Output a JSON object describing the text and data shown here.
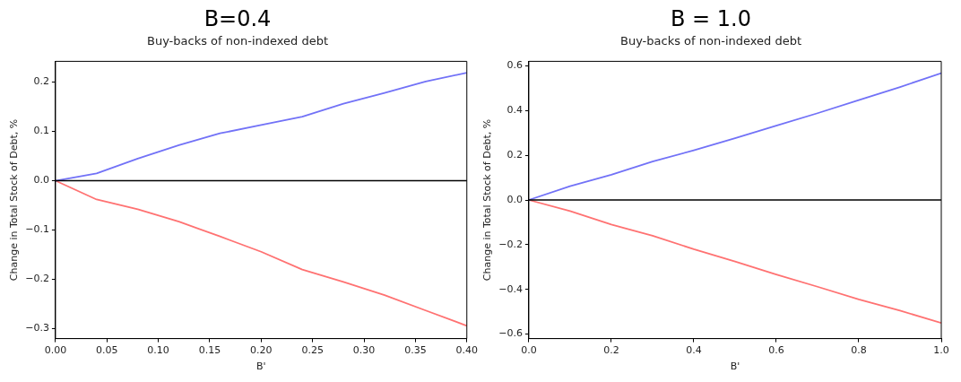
{
  "chart_data": [
    {
      "type": "line",
      "title": "B̄=0.4",
      "subtitle": "Buy-backs of non-indexed debt",
      "xlabel": "B'",
      "ylabel": "Change in Total Stock of Debt, %",
      "x": [
        0,
        0.04,
        0.08,
        0.12,
        0.16,
        0.2,
        0.24,
        0.28,
        0.32,
        0.36,
        0.4
      ],
      "series": [
        {
          "color": "#7272f7",
          "values": [
            0,
            0.015,
            0.045,
            0.072,
            0.096,
            0.113,
            0.13,
            0.156,
            0.178,
            0.201,
            0.219
          ]
        },
        {
          "color": "#ff7272",
          "values": [
            0,
            -0.038,
            -0.058,
            -0.083,
            -0.113,
            -0.144,
            -0.18,
            -0.205,
            -0.232,
            -0.263,
            -0.294
          ]
        }
      ],
      "xlim": [
        0,
        0.4
      ],
      "xticks": [
        {
          "value": 0,
          "label": "0.00"
        },
        {
          "value": 0.05,
          "label": "0.05"
        },
        {
          "value": 0.1,
          "label": "0.10"
        },
        {
          "value": 0.15,
          "label": "0.15"
        },
        {
          "value": 0.2,
          "label": "0.20"
        },
        {
          "value": 0.25,
          "label": "0.25"
        },
        {
          "value": 0.3,
          "label": "0.30"
        },
        {
          "value": 0.35,
          "label": "0.35"
        },
        {
          "value": 0.4,
          "label": "0.40"
        }
      ],
      "ylim": [
        -0.32,
        0.242
      ],
      "yticks": [
        {
          "value": -0.3,
          "label": "−0.3"
        },
        {
          "value": -0.2,
          "label": "−0.2"
        },
        {
          "value": -0.1,
          "label": "−0.1"
        },
        {
          "value": 0,
          "label": "0.0"
        },
        0.1,
        0.2
      ],
      "ref_lines": [
        {
          "axis": "y",
          "value": 0,
          "color": "#000000"
        }
      ],
      "grid": false,
      "legend": false,
      "marker": "none",
      "line_style": "solid"
    },
    {
      "type": "line",
      "title": "B̄ = 1.0",
      "subtitle": "Buy-backs of non-indexed debt",
      "xlabel": "B'",
      "ylabel": "Change in Total Stock of Debt, %",
      "x": [
        0,
        0.1,
        0.2,
        0.3,
        0.4,
        0.5,
        0.6,
        0.7,
        0.8,
        0.9,
        1.0
      ],
      "series": [
        {
          "color": "#7272f7",
          "values": [
            0,
            0.062,
            0.113,
            0.172,
            0.222,
            0.276,
            0.332,
            0.388,
            0.447,
            0.505,
            0.567
          ]
        },
        {
          "color": "#ff7272",
          "values": [
            0,
            -0.05,
            -0.11,
            -0.16,
            -0.22,
            -0.275,
            -0.333,
            -0.388,
            -0.445,
            -0.495,
            -0.55
          ]
        }
      ],
      "xlim": [
        0,
        1.0
      ],
      "xticks": [
        {
          "value": 0,
          "label": "0.0"
        },
        0.2,
        0.4,
        0.6,
        0.8,
        {
          "value": 1,
          "label": "1.0"
        }
      ],
      "ylim": [
        -0.62,
        0.62
      ],
      "yticks": [
        {
          "value": -0.6,
          "label": "−0.6"
        },
        {
          "value": -0.4,
          "label": "−0.4"
        },
        {
          "value": -0.2,
          "label": "−0.2"
        },
        {
          "value": 0,
          "label": "0.0"
        },
        0.2,
        0.4,
        0.6
      ],
      "ref_lines": [
        {
          "axis": "y",
          "value": 0,
          "color": "#000000"
        }
      ],
      "grid": false,
      "legend": false,
      "marker": "none",
      "line_style": "solid"
    }
  ]
}
